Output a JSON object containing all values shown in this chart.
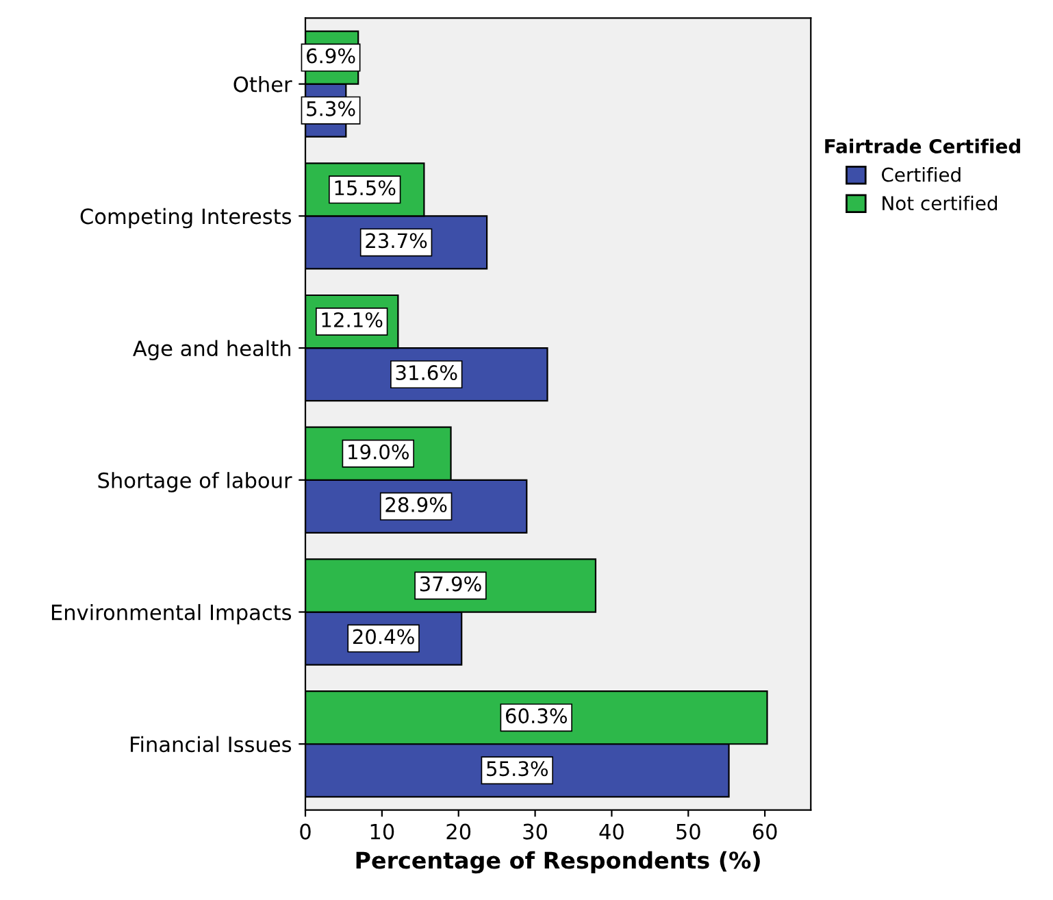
{
  "chart_data": {
    "type": "bar",
    "orientation": "horizontal",
    "categories": [
      "Other",
      "Competing Interests",
      "Age and health",
      "Shortage of labour",
      "Environmental Impacts",
      "Financial Issues"
    ],
    "series": [
      {
        "name": "Certified",
        "color": "#3d4fa8",
        "values": [
          5.3,
          23.7,
          31.6,
          28.9,
          20.4,
          55.3
        ],
        "value_labels": [
          "5.3%",
          "23.7%",
          "31.6%",
          "28.9%",
          "20.4%",
          "55.3%"
        ]
      },
      {
        "name": "Not certified",
        "color": "#2db84a",
        "values": [
          6.9,
          15.5,
          12.1,
          19.0,
          37.9,
          60.3
        ],
        "value_labels": [
          "6.9%",
          "15.5%",
          "12.1%",
          "19.0%",
          "37.9%",
          "60.3%"
        ]
      }
    ],
    "xlabel": "Percentage of Respondents (%)",
    "legend_title": "Fairtrade Certified",
    "xlim": [
      0,
      66
    ],
    "xticks": [
      0,
      10,
      20,
      30,
      40,
      50,
      60
    ],
    "grid": false,
    "legend": "right"
  }
}
